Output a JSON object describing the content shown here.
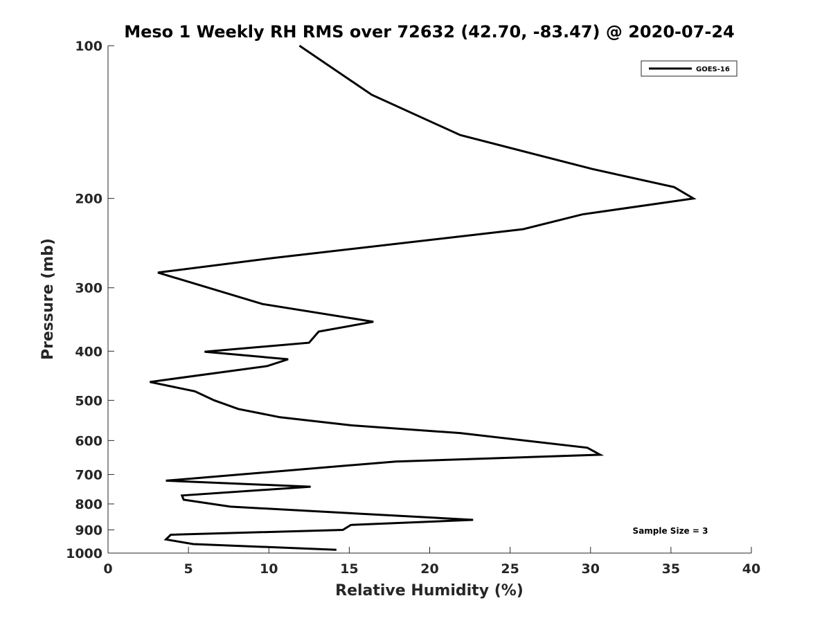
{
  "chart_data": {
    "type": "line",
    "title": "Meso 1 Weekly RH RMS over 72632 (42.70, -83.47) @ 2020-07-24",
    "xlabel": "Relative Humidity (%)",
    "ylabel": "Pressure (mb)",
    "xlim": [
      0,
      40
    ],
    "ylim": [
      1000,
      100
    ],
    "y_scale": "log",
    "grid": false,
    "x_ticks": [
      0,
      5,
      10,
      15,
      20,
      25,
      30,
      35,
      40
    ],
    "y_ticks": [
      100,
      200,
      300,
      400,
      500,
      600,
      700,
      800,
      900,
      1000
    ],
    "legend_position": "top-right",
    "annotation": "Sample Size = 3",
    "series": [
      {
        "name": "GOES-16",
        "color": "#000000",
        "points": [
          {
            "rh": 11.9,
            "p": 100
          },
          {
            "rh": 16.4,
            "p": 125
          },
          {
            "rh": 21.9,
            "p": 150
          },
          {
            "rh": 30.1,
            "p": 175
          },
          {
            "rh": 35.2,
            "p": 190
          },
          {
            "rh": 36.4,
            "p": 200
          },
          {
            "rh": 29.5,
            "p": 215
          },
          {
            "rh": 25.8,
            "p": 230
          },
          {
            "rh": 10.3,
            "p": 262
          },
          {
            "rh": 3.1,
            "p": 280
          },
          {
            "rh": 9.6,
            "p": 323
          },
          {
            "rh": 16.5,
            "p": 350
          },
          {
            "rh": 13.1,
            "p": 366
          },
          {
            "rh": 12.5,
            "p": 385
          },
          {
            "rh": 6.0,
            "p": 401
          },
          {
            "rh": 11.2,
            "p": 415
          },
          {
            "rh": 9.9,
            "p": 428
          },
          {
            "rh": 2.6,
            "p": 460
          },
          {
            "rh": 5.4,
            "p": 480
          },
          {
            "rh": 6.6,
            "p": 500
          },
          {
            "rh": 8.1,
            "p": 520
          },
          {
            "rh": 10.7,
            "p": 540
          },
          {
            "rh": 15.1,
            "p": 560
          },
          {
            "rh": 21.9,
            "p": 580
          },
          {
            "rh": 29.8,
            "p": 620
          },
          {
            "rh": 30.6,
            "p": 640
          },
          {
            "rh": 17.9,
            "p": 660
          },
          {
            "rh": 3.6,
            "p": 720
          },
          {
            "rh": 12.6,
            "p": 740
          },
          {
            "rh": 4.6,
            "p": 770
          },
          {
            "rh": 4.7,
            "p": 785
          },
          {
            "rh": 7.6,
            "p": 810
          },
          {
            "rh": 22.7,
            "p": 860
          },
          {
            "rh": 15.1,
            "p": 880
          },
          {
            "rh": 14.6,
            "p": 900
          },
          {
            "rh": 3.9,
            "p": 920
          },
          {
            "rh": 3.6,
            "p": 940
          },
          {
            "rh": 5.3,
            "p": 960
          },
          {
            "rh": 14.2,
            "p": 985
          }
        ]
      }
    ]
  }
}
